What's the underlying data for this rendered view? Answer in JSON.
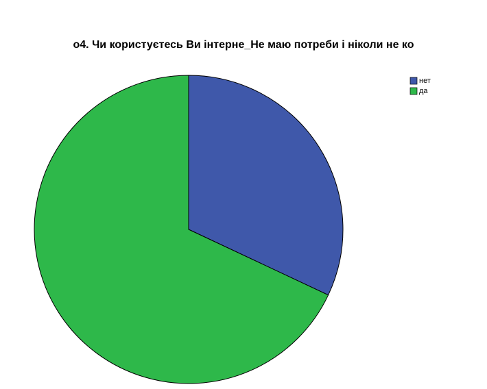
{
  "chart_data": {
    "type": "pie",
    "title": "о4. Чи користуєтесь Ви інтерне_Не маю потреби і ніколи не ко",
    "series": [
      {
        "name": "нет",
        "color": "#3f58aa",
        "values": [
          32
        ]
      },
      {
        "name": "да",
        "color": "#2eb84a",
        "values": [
          68
        ]
      }
    ],
    "legend": "top-right"
  }
}
